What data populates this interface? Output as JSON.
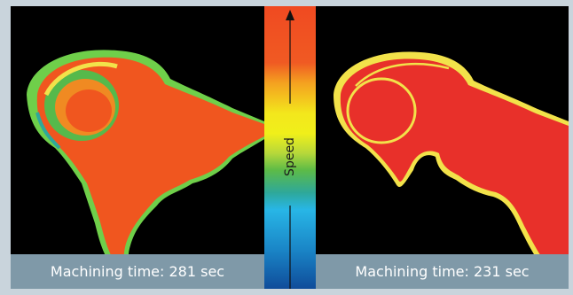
{
  "left_panel": {
    "caption": "Machining time: 281 sec"
  },
  "right_panel": {
    "caption": "Machining time: 231 sec"
  },
  "speed_scale": {
    "label": "Speed"
  },
  "colors": {
    "background": "#c9d4dc",
    "caption_bg": "#7f99a8",
    "part_left": "#f0561f",
    "part_right": "#e8302a",
    "edge_yellow": "#f2e24a",
    "edge_green": "#6fcf4a"
  }
}
